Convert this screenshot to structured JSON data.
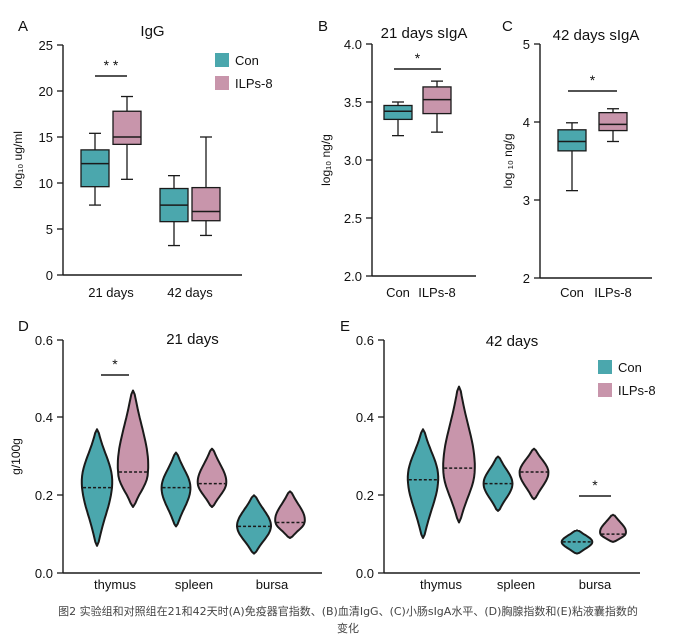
{
  "colors": {
    "con": "#4ba7ad",
    "ilps": "#c895ab",
    "outline": "#1a1a1a"
  },
  "caption": {
    "line1": "图2 实验组和对照组在21和42天时(A)免疫器官指数、(B)血清IgG、(C)小肠sIgA水平、(D)胸腺指数和(E)粘液囊指数的",
    "line2": "变化"
  },
  "chart_data": [
    {
      "panel": "A",
      "type": "box",
      "title": "IgG",
      "ylabel": "log₁₀ ug/ml",
      "ylim": [
        0,
        25
      ],
      "yticks": [
        "0",
        "5",
        "10",
        "15",
        "20",
        "25"
      ],
      "categories": [
        "21 days",
        "42 days"
      ],
      "legend": {
        "position": "top-right",
        "entries": [
          "Con",
          "ILPs-8"
        ]
      },
      "series": [
        {
          "name": "Con",
          "boxes": [
            {
              "min": 7.6,
              "q1": 9.6,
              "median": 12.1,
              "q3": 13.6,
              "max": 15.4
            },
            {
              "min": 3.2,
              "q1": 5.8,
              "median": 7.6,
              "q3": 9.4,
              "max": 10.8
            }
          ]
        },
        {
          "name": "ILPs-8",
          "boxes": [
            {
              "min": 10.4,
              "q1": 14.2,
              "median": 15.0,
              "q3": 17.8,
              "max": 19.4
            },
            {
              "min": 4.3,
              "q1": 5.9,
              "median": 6.9,
              "q3": 9.5,
              "max": 15.0
            }
          ]
        }
      ],
      "significance": [
        {
          "category": "21 days",
          "label": "* *"
        }
      ]
    },
    {
      "panel": "B",
      "type": "box",
      "title": "21 days  sIgA",
      "ylabel": "log₁₀ ng/g",
      "ylim": [
        2.0,
        4.0
      ],
      "yticks": [
        "2.0",
        "2.5",
        "3.0",
        "3.5",
        "4.0"
      ],
      "categories": [
        "Con",
        "ILPs-8"
      ],
      "series": [
        {
          "name": "Con",
          "boxes": [
            {
              "min": 3.21,
              "q1": 3.35,
              "median": 3.42,
              "q3": 3.47,
              "max": 3.5
            }
          ]
        },
        {
          "name": "ILPs-8",
          "boxes": [
            {
              "min": 3.24,
              "q1": 3.4,
              "median": 3.52,
              "q3": 3.63,
              "max": 3.68
            }
          ]
        }
      ],
      "significance": [
        {
          "label": "*"
        }
      ]
    },
    {
      "panel": "C",
      "type": "box",
      "title": "42 days sIgA",
      "ylabel": "log ₁₀ ng/g",
      "ylim": [
        2,
        5
      ],
      "yticks": [
        "2",
        "3",
        "4",
        "5"
      ],
      "categories": [
        "Con",
        "ILPs-8"
      ],
      "series": [
        {
          "name": "Con",
          "boxes": [
            {
              "min": 3.12,
              "q1": 3.63,
              "median": 3.75,
              "q3": 3.9,
              "max": 3.99
            }
          ]
        },
        {
          "name": "ILPs-8",
          "boxes": [
            {
              "min": 3.75,
              "q1": 3.89,
              "median": 3.97,
              "q3": 4.12,
              "max": 4.17
            }
          ]
        }
      ],
      "significance": [
        {
          "label": "*"
        }
      ]
    },
    {
      "panel": "D",
      "type": "violin",
      "title": "21 days",
      "ylabel": "g/100g",
      "ylim": [
        0.0,
        0.6
      ],
      "yticks": [
        "0.0",
        "0.2",
        "0.4",
        "0.6"
      ],
      "categories": [
        "thymus",
        "spleen",
        "bursa"
      ],
      "series": [
        {
          "name": "Con",
          "violins": [
            {
              "min": 0.07,
              "max": 0.37,
              "median": 0.22,
              "mode": 0.24,
              "width": 0.9
            },
            {
              "min": 0.12,
              "max": 0.31,
              "median": 0.22,
              "mode": 0.22,
              "width": 0.85
            },
            {
              "min": 0.05,
              "max": 0.2,
              "median": 0.12,
              "mode": 0.12,
              "width": 1.0
            }
          ]
        },
        {
          "name": "ILPs-8",
          "violins": [
            {
              "min": 0.17,
              "max": 0.47,
              "median": 0.26,
              "mode": 0.25,
              "width": 0.95
            },
            {
              "min": 0.17,
              "max": 0.32,
              "median": 0.23,
              "mode": 0.23,
              "width": 0.85
            },
            {
              "min": 0.09,
              "max": 0.21,
              "median": 0.13,
              "mode": 0.13,
              "width": 0.9
            }
          ]
        }
      ],
      "significance": [
        {
          "category": "thymus",
          "label": "*"
        }
      ]
    },
    {
      "panel": "E",
      "type": "violin",
      "title": "42 days",
      "ylim": [
        0.0,
        0.6
      ],
      "yticks": [
        "0.0",
        "0.2",
        "0.4",
        "0.6"
      ],
      "categories": [
        "thymus",
        "spleen",
        "bursa"
      ],
      "legend": {
        "position": "top-right",
        "entries": [
          "Con",
          "ILPs-8"
        ]
      },
      "series": [
        {
          "name": "Con",
          "violins": [
            {
              "min": 0.09,
              "max": 0.37,
              "median": 0.24,
              "mode": 0.25,
              "width": 0.9
            },
            {
              "min": 0.16,
              "max": 0.3,
              "median": 0.23,
              "mode": 0.23,
              "width": 0.85
            },
            {
              "min": 0.05,
              "max": 0.11,
              "median": 0.08,
              "mode": 0.08,
              "width": 0.9
            }
          ]
        },
        {
          "name": "ILPs-8",
          "violins": [
            {
              "min": 0.13,
              "max": 0.48,
              "median": 0.27,
              "mode": 0.26,
              "width": 0.95
            },
            {
              "min": 0.19,
              "max": 0.32,
              "median": 0.26,
              "mode": 0.26,
              "width": 0.85
            },
            {
              "min": 0.08,
              "max": 0.15,
              "median": 0.1,
              "mode": 0.1,
              "width": 0.8
            }
          ]
        }
      ],
      "significance": [
        {
          "category": "bursa",
          "label": "*"
        }
      ]
    }
  ]
}
